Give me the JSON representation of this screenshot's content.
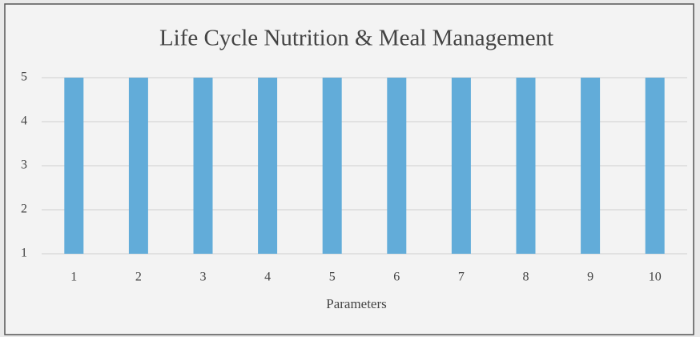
{
  "chart_data": {
    "type": "bar",
    "title": "Life Cycle Nutrition & Meal Management",
    "x_label": "Parameters",
    "categories": [
      "1",
      "2",
      "3",
      "4",
      "5",
      "6",
      "7",
      "8",
      "9",
      "10"
    ],
    "values": [
      5,
      5,
      5,
      5,
      5,
      5,
      5,
      5,
      5,
      5
    ],
    "color": "#62acd9",
    "ylim": [
      1,
      5
    ],
    "yticks": [
      1,
      2,
      3,
      4,
      5
    ],
    "grid": true
  }
}
